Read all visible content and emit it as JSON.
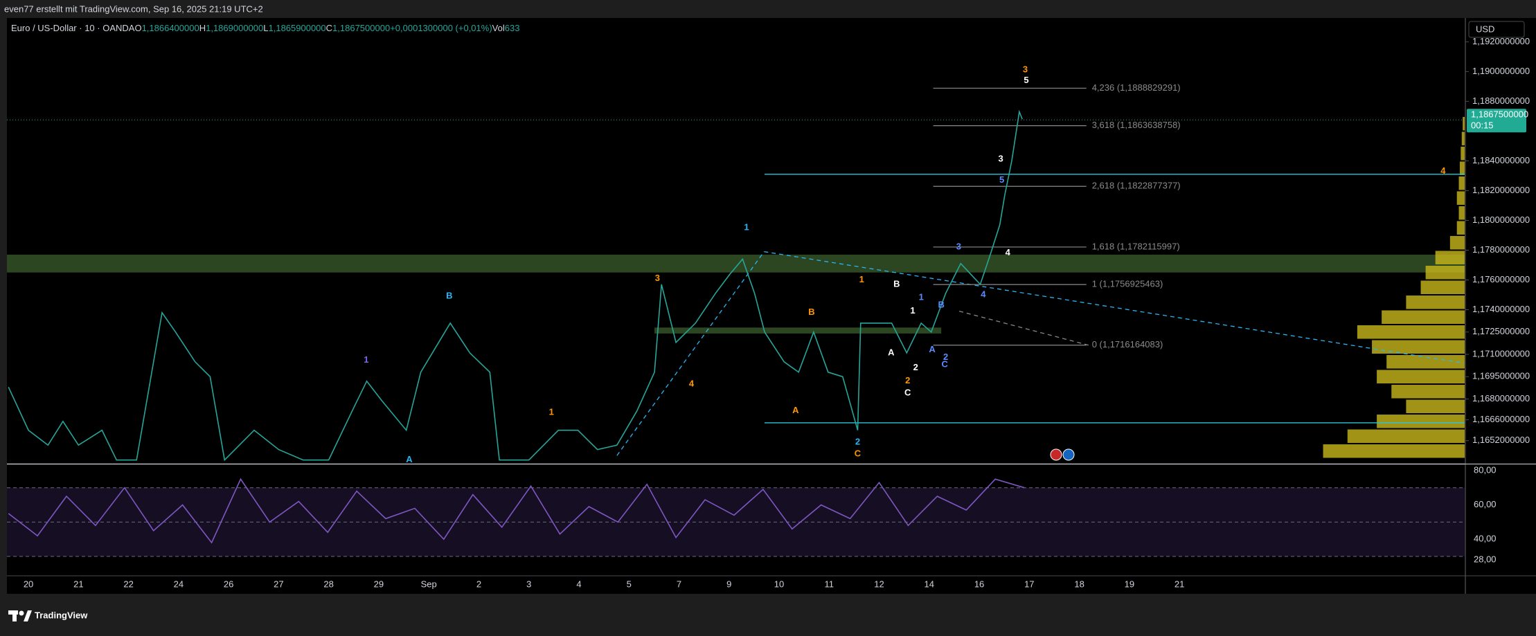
{
  "header": {
    "caption": "even77 erstellt mit TradingView.com, Sep 16, 2025 21:19 UTC+2"
  },
  "legend": {
    "symbol": "Euro / US-Dollar · 10 · OANDA",
    "ohlc": [
      {
        "key": "O",
        "value": "1,1866400000"
      },
      {
        "key": "H",
        "value": "1,1869000000"
      },
      {
        "key": "L",
        "value": "1,1865900000"
      },
      {
        "key": "C",
        "value": "1,1867500000"
      }
    ],
    "change": "+0,0001300000 (+0,01%)",
    "volume": {
      "key": "Vol",
      "value": "633"
    }
  },
  "currency": "USD",
  "footer": {
    "brand": "TradingView"
  },
  "chart_data": [
    {
      "type": "line",
      "color": "#26a69a",
      "x": [
        -0.4,
        0,
        0.39,
        0.69,
        1,
        1.47,
        1.76,
        2.16,
        2.67,
        2.94,
        3.33,
        3.63,
        3.92,
        4.51,
        5,
        5.49,
        6,
        6.47,
        6.76,
        7.06,
        7.55,
        7.84,
        8.43,
        8.82,
        9.22,
        9.41,
        10,
        10.59,
        10.98,
        11.37,
        11.76,
        12.16,
        12.51,
        12.65,
        12.94,
        13.33,
        13.73,
        14.02,
        14.27,
        14.51,
        14.71,
        15.1,
        15.39,
        15.69,
        15.98,
        16.27,
        16.57,
        16.63,
        16.96,
        17.25,
        17.55,
        17.84,
        18.04,
        18.33,
        18.63,
        19.02,
        19.22,
        19.41,
        19.51,
        19.65,
        19.8,
        19.86
      ],
      "values": [
        1.1688,
        1.1659,
        1.1649,
        1.1665,
        1.1649,
        1.1659,
        1.1639,
        1.1639,
        1.1738,
        1.1725,
        1.1705,
        1.1695,
        1.1639,
        1.1659,
        1.1646,
        1.1639,
        1.1639,
        1.1672,
        1.1692,
        1.1679,
        1.1659,
        1.1698,
        1.1731,
        1.1711,
        1.1698,
        1.1639,
        1.1639,
        1.1659,
        1.1659,
        1.1646,
        1.1649,
        1.1672,
        1.1698,
        1.1757,
        1.1718,
        1.1731,
        1.1751,
        1.1764,
        1.1774,
        1.1751,
        1.1725,
        1.1705,
        1.1698,
        1.1725,
        1.1698,
        1.1695,
        1.1659,
        1.1731,
        1.1731,
        1.1731,
        1.1711,
        1.1731,
        1.1725,
        1.1751,
        1.1771,
        1.1757,
        1.1777,
        1.1797,
        1.1817,
        1.184,
        1.1873,
        1.1868
      ],
      "xlim": [
        -0.43,
        28.7
      ],
      "ylim": [
        1.1637,
        1.1936
      ],
      "xticks": [
        {
          "value": 0,
          "label": "20"
        },
        {
          "value": 1,
          "label": "21"
        },
        {
          "value": 2,
          "label": "22"
        },
        {
          "value": 3,
          "label": "24"
        },
        {
          "value": 4,
          "label": "26"
        },
        {
          "value": 5,
          "label": "27"
        },
        {
          "value": 6,
          "label": "28"
        },
        {
          "value": 7,
          "label": "29"
        },
        {
          "value": 8,
          "label": "Sep"
        },
        {
          "value": 9,
          "label": "2"
        },
        {
          "value": 10,
          "label": "3"
        },
        {
          "value": 11,
          "label": "4"
        },
        {
          "value": 12,
          "label": "5"
        },
        {
          "value": 13,
          "label": "7"
        },
        {
          "value": 14,
          "label": "9"
        },
        {
          "value": 15,
          "label": "10"
        },
        {
          "value": 16,
          "label": "11"
        },
        {
          "value": 17,
          "label": "12"
        },
        {
          "value": 18,
          "label": "14"
        },
        {
          "value": 19,
          "label": "16"
        },
        {
          "value": 20,
          "label": "17"
        },
        {
          "value": 21,
          "label": "18"
        },
        {
          "value": 22,
          "label": "19"
        },
        {
          "value": 23,
          "label": "21"
        }
      ],
      "yticks": [
        {
          "value": 1.192,
          "label": "1,1920000000"
        },
        {
          "value": 1.19,
          "label": "1,1900000000"
        },
        {
          "value": 1.188,
          "label": "1,1880000000"
        },
        {
          "value": 1.184,
          "label": "1,1840000000"
        },
        {
          "value": 1.182,
          "label": "1,1820000000"
        },
        {
          "value": 1.18,
          "label": "1,1800000000"
        },
        {
          "value": 1.178,
          "label": "1,1780000000"
        },
        {
          "value": 1.176,
          "label": "1,1760000000"
        },
        {
          "value": 1.174,
          "label": "1,1740000000"
        },
        {
          "value": 1.1725,
          "label": "1,1725000000"
        },
        {
          "value": 1.171,
          "label": "1,1710000000"
        },
        {
          "value": 1.1695,
          "label": "1,1695000000"
        },
        {
          "value": 1.168,
          "label": "1,1680000000"
        },
        {
          "value": 1.1666,
          "label": "1,1666000000"
        },
        {
          "value": 1.1652,
          "label": "1,1652000000"
        }
      ],
      "last_price": {
        "value": 1.18675,
        "label": "1,1867500000",
        "countdown": "00:15",
        "color": "#22ab94"
      },
      "fib": {
        "x": [
          18.08,
          21.14
        ],
        "levels": [
          {
            "value": 1.1888829291,
            "label": "4,236 (1,1888829291)"
          },
          {
            "value": 1.1863638758,
            "label": "3,618 (1,1863638758)"
          },
          {
            "value": 1.1822877377,
            "label": "2,618 (1,1822877377)"
          },
          {
            "value": 1.1782115997,
            "label": "1,618 (1,1782115997)"
          },
          {
            "value": 1.1756925463,
            "label": "1 (1,1756925463)"
          },
          {
            "value": 1.1716164083,
            "label": "0 (1,1716164083)"
          }
        ]
      },
      "hlines": [
        {
          "value": 1.1831,
          "x": 14.71
        },
        {
          "value": 1.1664,
          "x": 14.71
        }
      ],
      "zones": [
        {
          "from": 1.1765,
          "to": 1.1777
        },
        {
          "from": 1.1724,
          "to": 1.1728,
          "x": [
            12.51,
            18.24
          ]
        }
      ],
      "trendlines": [
        [
          14.7,
          1.1779,
          28.7,
          1.1704
        ],
        [
          11.76,
          1.1642,
          14.7,
          1.1779
        ],
        [
          18.6,
          1.1739,
          21.2,
          1.1716
        ]
      ],
      "volume_profile": {
        "color": "#c9b81c",
        "bins": [
          1.164,
          1.165,
          1.166,
          1.167,
          1.168,
          1.169,
          1.17,
          1.171,
          1.172,
          1.173,
          1.174,
          1.175,
          1.176,
          1.177,
          1.178,
          1.179,
          1.18,
          1.181,
          1.182,
          1.183,
          1.184,
          1.185,
          1.186,
          1.187
        ],
        "counts": [
          145,
          120,
          90,
          60,
          75,
          90,
          80,
          95,
          110,
          85,
          60,
          45,
          40,
          30,
          15,
          8,
          6,
          8,
          6,
          5,
          4,
          3,
          2
        ]
      },
      "wave_labels": [
        {
          "text": "3",
          "x": 19.92,
          "y": 1.1901,
          "color": "#ff9800"
        },
        {
          "text": "5",
          "x": 19.94,
          "y": 1.1894,
          "color": "#ffffff"
        },
        {
          "text": "3",
          "x": 19.43,
          "y": 1.1841,
          "color": "#ffffff"
        },
        {
          "text": "5",
          "x": 19.45,
          "y": 1.1827,
          "color": "#5b8cff"
        },
        {
          "text": "4",
          "x": 19.57,
          "y": 1.1778,
          "color": "#ffffff"
        },
        {
          "text": "4",
          "x": 28.27,
          "y": 1.1833,
          "color": "#ff9800"
        },
        {
          "text": "1",
          "x": 14.35,
          "y": 1.1795,
          "color": "#29b6f6"
        },
        {
          "text": "3",
          "x": 18.59,
          "y": 1.1782,
          "color": "#5b8cff"
        },
        {
          "text": "4",
          "x": 19.08,
          "y": 1.175,
          "color": "#5b8cff"
        },
        {
          "text": "3",
          "x": 12.57,
          "y": 1.1761,
          "color": "#ff9800"
        },
        {
          "text": "1",
          "x": 16.65,
          "y": 1.176,
          "color": "#ff9800"
        },
        {
          "text": "B",
          "x": 17.35,
          "y": 1.1757,
          "color": "#ffffff"
        },
        {
          "text": "1",
          "x": 17.84,
          "y": 1.1748,
          "color": "#5b8cff"
        },
        {
          "text": "B",
          "x": 8.41,
          "y": 1.1749,
          "color": "#29b6f6"
        },
        {
          "text": "B",
          "x": 15.65,
          "y": 1.1738,
          "color": "#ff9800"
        },
        {
          "text": "1",
          "x": 17.67,
          "y": 1.1739,
          "color": "#ffffff"
        },
        {
          "text": "B",
          "x": 18.24,
          "y": 1.1743,
          "color": "#5b8cff"
        },
        {
          "text": "A",
          "x": 17.24,
          "y": 1.1711,
          "color": "#ffffff"
        },
        {
          "text": "2",
          "x": 17.73,
          "y": 1.1701,
          "color": "#ffffff"
        },
        {
          "text": "A",
          "x": 18.06,
          "y": 1.1713,
          "color": "#5b8cff"
        },
        {
          "text": "2",
          "x": 18.33,
          "y": 1.1708,
          "color": "#5b8cff"
        },
        {
          "text": "C",
          "x": 18.31,
          "y": 1.1703,
          "color": "#5b8cff"
        },
        {
          "text": "1",
          "x": 6.75,
          "y": 1.1706,
          "color": "#7b68ee"
        },
        {
          "text": "4",
          "x": 13.25,
          "y": 1.169,
          "color": "#ff9800"
        },
        {
          "text": "2",
          "x": 17.57,
          "y": 1.1692,
          "color": "#ff9800"
        },
        {
          "text": "C",
          "x": 17.57,
          "y": 1.1684,
          "color": "#ffffff"
        },
        {
          "text": "A",
          "x": 15.33,
          "y": 1.1672,
          "color": "#ff9800"
        },
        {
          "text": "1",
          "x": 10.45,
          "y": 1.1671,
          "color": "#ff9800"
        },
        {
          "text": "2",
          "x": 16.57,
          "y": 1.1651,
          "color": "#29b6f6"
        },
        {
          "text": "C",
          "x": 16.57,
          "y": 1.1643,
          "color": "#ff9800"
        },
        {
          "text": "A",
          "x": 7.61,
          "y": 1.1639,
          "color": "#29b6f6"
        }
      ]
    },
    {
      "type": "line",
      "color": "#7e57c2",
      "x": [
        -0.4,
        0.18,
        0.76,
        1.34,
        1.92,
        2.5,
        3.08,
        3.66,
        4.24,
        4.82,
        5.4,
        5.98,
        6.56,
        7.14,
        7.72,
        8.3,
        8.88,
        9.46,
        10.04,
        10.62,
        11.2,
        11.78,
        12.36,
        12.94,
        13.52,
        14.1,
        14.68,
        15.26,
        15.84,
        16.42,
        17,
        17.58,
        18.16,
        18.74,
        19.32,
        19.9
      ],
      "values": [
        55,
        42,
        65,
        48,
        70,
        45,
        60,
        38,
        75,
        50,
        62,
        44,
        68,
        52,
        58,
        40,
        66,
        47,
        71,
        43,
        59,
        50,
        72,
        41,
        63,
        54,
        69,
        46,
        60,
        52,
        73,
        48,
        65,
        57,
        75,
        70
      ],
      "ylim": [
        18.7,
        83.2
      ],
      "yticks": [
        {
          "value": 80,
          "label": "80,00"
        },
        {
          "value": 60,
          "label": "60,00"
        },
        {
          "value": 40,
          "label": "40,00"
        },
        {
          "value": 28,
          "label": "28,00"
        }
      ],
      "levels": [
        70,
        50,
        30
      ]
    }
  ]
}
